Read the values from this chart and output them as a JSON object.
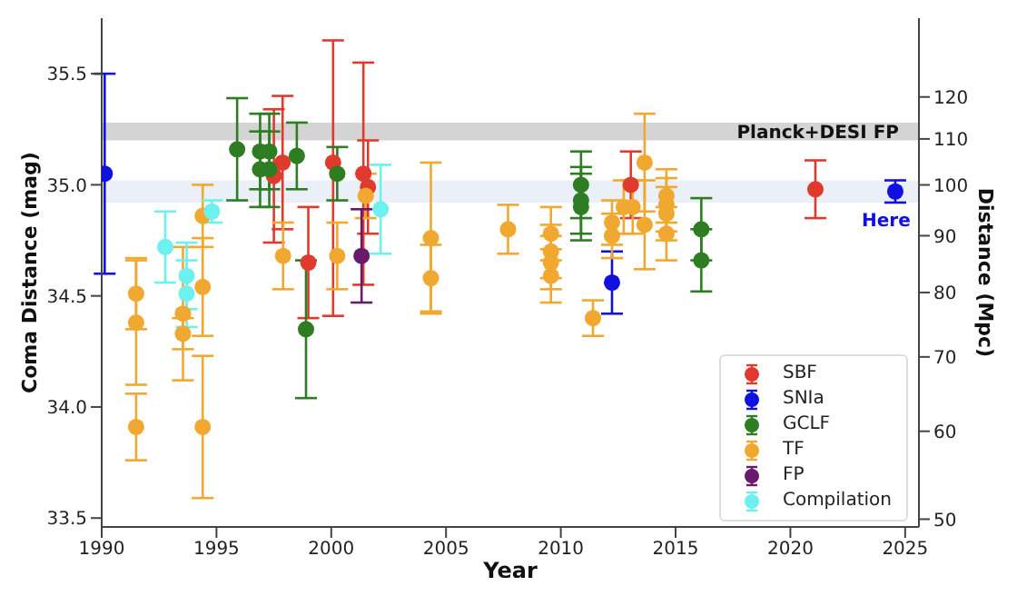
{
  "chart_data": {
    "type": "scatter",
    "xlabel": "Year",
    "ylabel": "Coma Distance (mag)",
    "y2label": "Distance (Mpc)",
    "xlim": [
      1990,
      2025.6
    ],
    "xticks": [
      1990,
      1995,
      2000,
      2005,
      2010,
      2015,
      2020,
      2025
    ],
    "ylim": [
      33.46,
      35.75
    ],
    "yticks": [
      {
        "value": 33.5,
        "label": "33.5"
      },
      {
        "value": 34,
        "label": "34.0"
      },
      {
        "value": 34.5,
        "label": "34.5"
      },
      {
        "value": 35,
        "label": "35.0"
      },
      {
        "value": 35.5,
        "label": "35.5"
      }
    ],
    "y2lim": [
      49.2,
      141.3
    ],
    "y2ticks": [
      50,
      60,
      70,
      80,
      90,
      100,
      110,
      120
    ],
    "log": "y2",
    "marker": "circle",
    "legend": "bottom right",
    "bands": [
      {
        "axis": "y",
        "from": 35.2,
        "to": 35.28,
        "label": "Planck+DESI FP",
        "color": "#d4d4d4"
      },
      {
        "axis": "y",
        "from": 34.92,
        "to": 35.02,
        "label": null,
        "color": "#eaeff8"
      }
    ],
    "annotations": [
      {
        "text": "Here",
        "x": 2024.57,
        "y": 34.97
      }
    ],
    "series": [
      {
        "name": "SBF",
        "color": "#e03a2e",
        "x": [
          1997.88,
          1997.5,
          1999.0,
          2000.08,
          2001.4,
          2001.6,
          2013.05,
          2021.09
        ],
        "values": [
          35.1,
          35.04,
          34.65,
          35.1,
          35.05,
          34.99,
          35.0,
          34.98
        ],
        "errors": [
          0.3,
          0.3,
          0.25,
          [
            34.41,
            35.65
          ],
          0.5,
          0.21,
          0.15,
          0.13
        ]
      },
      {
        "name": "SNIa",
        "color": "#1010e0",
        "x": [
          1990.13,
          2012.23,
          2024.57
        ],
        "values": [
          35.05,
          34.56,
          34.97
        ],
        "errors": [
          0.45,
          0.14,
          0.05
        ]
      },
      {
        "name": "GCLF",
        "color": "#2e7d22",
        "x": [
          1995.9,
          1996.9,
          1996.9,
          1997.3,
          1997.3,
          1998.5,
          1998.9,
          2000.26,
          2010.88,
          2010.88,
          2010.88,
          2016.12,
          2016.12
        ],
        "values": [
          35.16,
          35.15,
          35.07,
          35.15,
          35.07,
          35.13,
          34.35,
          35.05,
          35.0,
          34.93,
          34.9,
          34.8,
          34.66
        ],
        "errors": [
          0.23,
          0.17,
          0.17,
          0.17,
          0.17,
          0.15,
          0.31,
          0.12,
          0.15,
          0.15,
          0.15,
          0.14,
          0.14
        ]
      },
      {
        "name": "TF",
        "color": "#f0a830",
        "x": [
          1991.5,
          1991.5,
          1991.5,
          1993.54,
          1993.54,
          1994.4,
          1994.4,
          1994.4,
          1997.9,
          2000.26,
          2001.5,
          2004.34,
          2004.34,
          2007.7,
          2009.57,
          2009.57,
          2009.57,
          2009.57,
          2011.4,
          2012.23,
          2012.23,
          2012.74,
          2013.13,
          2013.65,
          2013.65,
          2014.6,
          2014.6,
          2014.6,
          2014.6
        ],
        "values": [
          34.51,
          34.38,
          33.91,
          34.42,
          34.33,
          34.86,
          34.54,
          33.91,
          34.68,
          34.68,
          34.95,
          34.76,
          34.58,
          34.8,
          34.78,
          34.7,
          34.65,
          34.59,
          34.4,
          34.83,
          34.77,
          34.9,
          34.9,
          35.1,
          34.82,
          34.95,
          34.91,
          34.87,
          34.78
        ],
        "errors": [
          0.16,
          0.28,
          0.15,
          0.3,
          0.07,
          0.14,
          0.22,
          0.32,
          0.15,
          0.15,
          0.1,
          0.34,
          0.15,
          0.11,
          0.12,
          0.12,
          0.12,
          0.12,
          0.08,
          0.1,
          0.1,
          0.12,
          0.12,
          0.22,
          0.2,
          0.12,
          0.12,
          0.12,
          0.12
        ]
      },
      {
        "name": "FP",
        "color": "#6a1a6a",
        "x": [
          2001.32
        ],
        "values": [
          34.68
        ],
        "errors": [
          0.21
        ]
      },
      {
        "name": "Compilation",
        "color": "#6ef0ee",
        "x": [
          1992.77,
          1993.7,
          1993.7,
          1994.8,
          2002.15
        ],
        "values": [
          34.72,
          34.59,
          34.51,
          34.88,
          34.89
        ],
        "errors": [
          0.16,
          0.15,
          0.15,
          0.05,
          0.2
        ]
      }
    ]
  }
}
